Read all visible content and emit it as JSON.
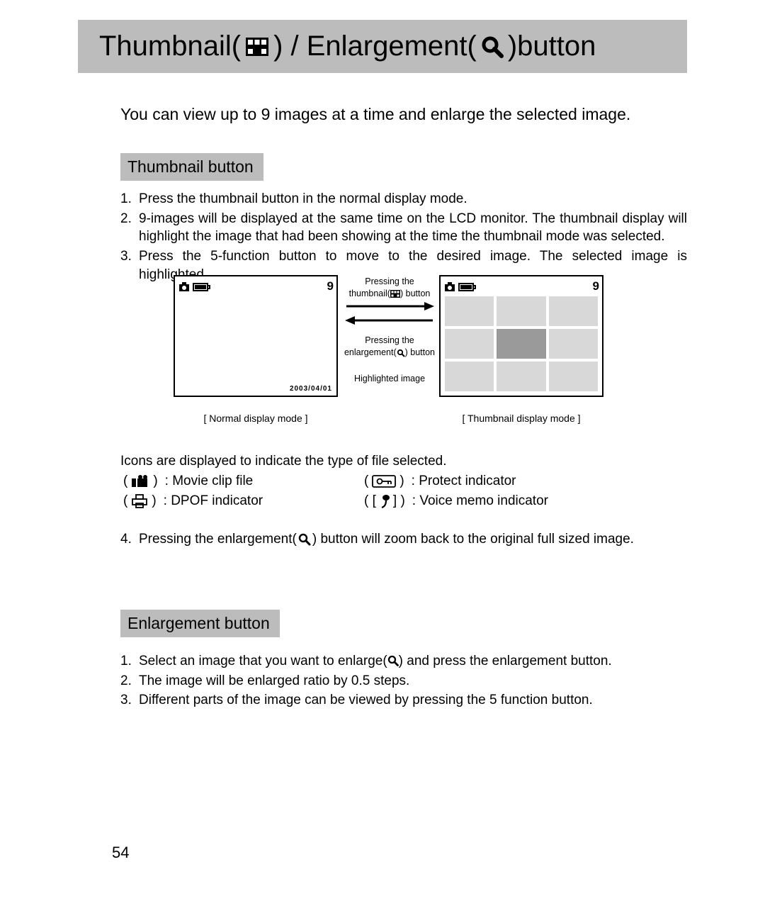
{
  "title": {
    "part1": "Thumbnail(",
    "part2": ") / Enlargement(",
    "part3": ")button"
  },
  "intro": "You can view up to 9 images at a time and enlarge the selected image.",
  "section1_heading": "Thumbnail button",
  "section1_items": [
    "Press the thumbnail button in the normal display mode.",
    "9-images will be displayed at the same time on the LCD monitor. The thumbnail display will highlight the image that had been showing at the time the thumbnail mode was selected.",
    "Press the 5-function button to move to the desired image. The selected image is highlighted."
  ],
  "diagram": {
    "normal": {
      "counter": "9",
      "date": "2003/04/01",
      "caption": "Normal display mode"
    },
    "thumb": {
      "counter": "9",
      "caption": "Thumbnail display mode",
      "highlight_caption": "Highlighted image"
    },
    "arrow_top_label_l1": "Pressing the",
    "arrow_top_label_l2": "thumbnail(      ) button",
    "arrow_bot_label_l1": "Pressing the",
    "arrow_bot_label_l2": "enlargement(      ) button",
    "grid": {
      "cols": 3,
      "rows": 3,
      "highlight_index": 4
    },
    "colors": {
      "cell": "#d8d8d8",
      "highlight": "#9a9a9a",
      "border": "#000000"
    }
  },
  "icons_intro": "Icons are displayed to indicate the type of file selected.",
  "icon_legend": [
    {
      "name": "movie-clip-icon",
      "label": ": Movie clip file"
    },
    {
      "name": "protect-icon",
      "label": ": Protect indicator"
    },
    {
      "name": "dpof-icon",
      "label": ": DPOF indicator"
    },
    {
      "name": "voice-memo-icon",
      "label": ": Voice memo indicator"
    }
  ],
  "step4": {
    "pre": "Pressing the enlargement(",
    "post": ") button will zoom back to the original full sized image."
  },
  "section2_heading": "Enlargement button",
  "section2_items": [
    {
      "pre": "Select an image that you want to enlarge(",
      "post": ") and press the enlargement button."
    },
    {
      "text": "The image will be enlarged ratio by 0.5 steps."
    },
    {
      "text": "Different parts of the image can be viewed by pressing the 5 function button."
    }
  ],
  "page_number": "54",
  "style": {
    "banner_bg": "#bcbcbc",
    "title_fontsize": 40,
    "body_fontsize": 19,
    "intro_fontsize": 23,
    "section_fontsize": 23,
    "caption_fontsize": 14,
    "arrow_label_fontsize": 12.5
  }
}
